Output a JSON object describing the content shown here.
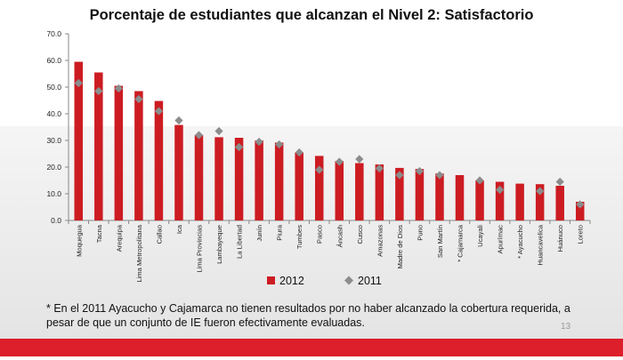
{
  "slide": {
    "title": "Porcentaje de estudiantes que alcanzan el Nivel 2: Satisfactorio",
    "footnote": "* En el 2011 Ayacucho y Cajamarca  no tienen resultados por no haber alcanzado la cobertura requerida, a pesar de que un conjunto de IE fueron efectivamente evaluadas.",
    "page_number": "13",
    "colors": {
      "bar_2012": "#cc1c22",
      "marker_2011": "#8c8c8c",
      "bottom_bar": "#dc1f2a"
    }
  },
  "chart_data": {
    "type": "bar",
    "title": "Porcentaje de estudiantes que alcanzan el Nivel 2: Satisfactorio",
    "xlabel": "",
    "ylabel": "",
    "ylim": [
      0,
      70
    ],
    "yticks": [
      "0.0",
      "10.0",
      "20.0",
      "30.0",
      "40.0",
      "50.0",
      "60.0",
      "70.0"
    ],
    "grid": false,
    "legend_position": "bottom",
    "categories": [
      "Moquegua",
      "Tacna",
      "Arequipa",
      "Lima Metropolitana",
      "Callao",
      "Ica",
      "Lima Provincias",
      "Lambayeque",
      "La Libertad",
      "Junín",
      "Piura",
      "Tumbes",
      "Pasco",
      "Áncash",
      "Cusco",
      "Amazonas",
      "Madre de Dios",
      "Puno",
      "San Martín",
      "* Cajamarca",
      "Ucayali",
      "Apurímac",
      "* Ayacucho",
      "Huancavelica",
      "Huánuco",
      "Loreto"
    ],
    "series": [
      {
        "name": "2012",
        "type": "bar",
        "color": "#cc1c22",
        "values": [
          59.5,
          55.5,
          50.5,
          48.5,
          44.8,
          35.8,
          32.0,
          31.2,
          31.0,
          30.0,
          29.2,
          25.5,
          24.2,
          22.3,
          21.5,
          21.0,
          19.7,
          19.3,
          17.6,
          17.0,
          15.0,
          14.5,
          13.8,
          13.6,
          13.0,
          7.0
        ]
      },
      {
        "name": "2011",
        "type": "marker",
        "color": "#8c8c8c",
        "values": [
          51.5,
          48.5,
          49.5,
          45.5,
          41.0,
          37.5,
          32.0,
          33.5,
          27.5,
          29.5,
          28.5,
          25.5,
          19.0,
          22.0,
          23.0,
          19.5,
          17.0,
          18.5,
          17.0,
          null,
          15.0,
          11.5,
          null,
          11.0,
          14.5,
          6.0
        ]
      }
    ]
  }
}
